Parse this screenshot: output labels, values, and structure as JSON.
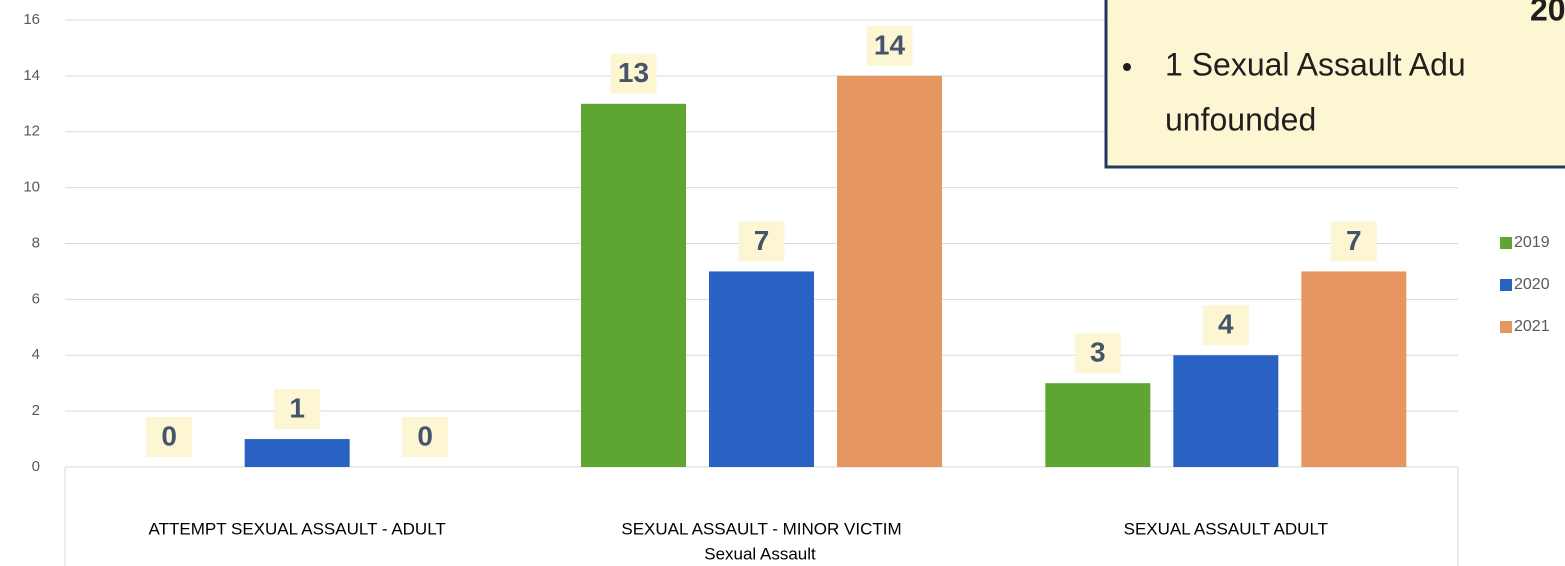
{
  "chart_data": {
    "type": "bar",
    "x_label": "Sexual Assault",
    "categories": [
      "ATTEMPT SEXUAL ASSAULT - ADULT",
      "SEXUAL ASSAULT - MINOR VICTIM",
      "SEXUAL ASSAULT ADULT"
    ],
    "series": [
      {
        "name": "2019",
        "color": "#5ea532",
        "values": [
          0,
          13,
          3
        ]
      },
      {
        "name": "2020",
        "color": "#2a62c4",
        "values": [
          1,
          7,
          4
        ]
      },
      {
        "name": "2021",
        "color": "#e69660",
        "values": [
          0,
          14,
          7
        ]
      }
    ],
    "ylim": [
      0,
      16
    ],
    "yticks": [
      0,
      2,
      4,
      6,
      8,
      10,
      12,
      14,
      16
    ],
    "grid": true,
    "legend": "right",
    "annotation": {
      "heading": "20",
      "bullet": "1 Sexual Assault Adu",
      "continuation": "unfounded"
    }
  }
}
